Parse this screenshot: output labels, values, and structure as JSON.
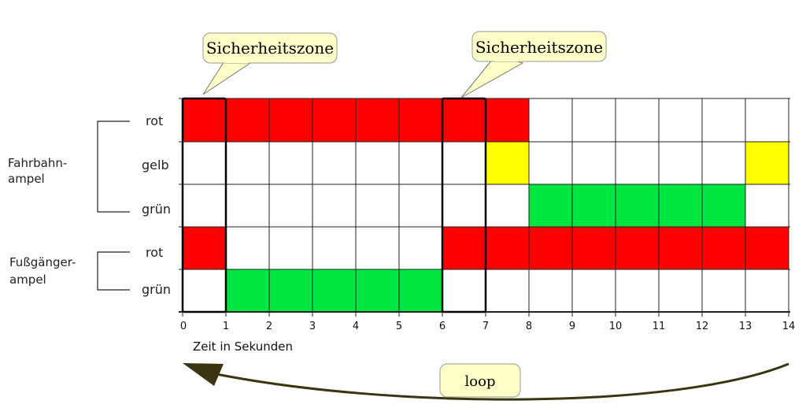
{
  "colors": {
    "red": "#ff0000",
    "yellow": "#ffff00",
    "green": "#00e640",
    "grid": "#000000",
    "callout_fill": "#ffffc8"
  },
  "rows": [
    {
      "label": "rot"
    },
    {
      "label": "gelb"
    },
    {
      "label": "grün"
    },
    {
      "label": "rot"
    },
    {
      "label": "grün"
    }
  ],
  "groups": {
    "fahrbahn": {
      "line1": "Fahrbahn-",
      "line2": "ampel"
    },
    "fussgaenger": {
      "line1": "Fußgänger-",
      "line2": "ampel"
    }
  },
  "x_axis": {
    "label": "Zeit in Sekunden",
    "ticks": [
      "0",
      "1",
      "2",
      "3",
      "4",
      "5",
      "6",
      "7",
      "8",
      "9",
      "10",
      "11",
      "12",
      "13",
      "14"
    ]
  },
  "phases": [
    {
      "row": 0,
      "start": 0,
      "end": 8,
      "color": "red"
    },
    {
      "row": 1,
      "start": 7,
      "end": 8,
      "color": "yellow"
    },
    {
      "row": 1,
      "start": 13,
      "end": 14,
      "color": "yellow"
    },
    {
      "row": 2,
      "start": 8,
      "end": 13,
      "color": "green"
    },
    {
      "row": 3,
      "start": 0,
      "end": 1,
      "color": "red"
    },
    {
      "row": 3,
      "start": 6,
      "end": 14,
      "color": "red"
    },
    {
      "row": 4,
      "start": 1,
      "end": 6,
      "color": "green"
    }
  ],
  "safety_zones": [
    {
      "start": 0,
      "end": 1,
      "label": "Sicherheitszone"
    },
    {
      "start": 6,
      "end": 7,
      "label": "Sicherheitszone"
    }
  ],
  "loop": {
    "label": "loop"
  }
}
